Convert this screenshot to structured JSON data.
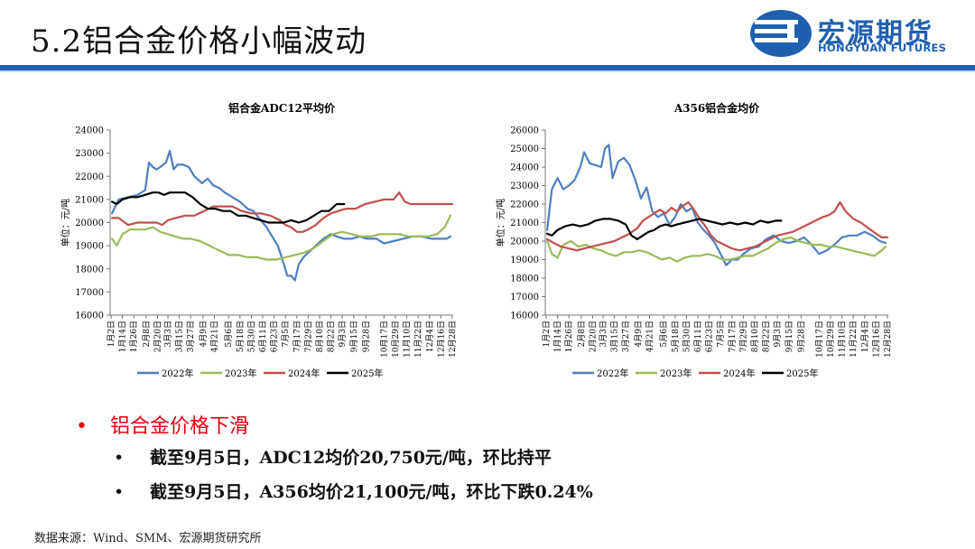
{
  "page": {
    "title": "5.2铝合金价格小幅波动",
    "logo_cn": "宏源期货",
    "logo_en": "HONGYUAN FUTURES",
    "source": "数据来源：Wind、SMM、宏源期货研究所"
  },
  "bullets": {
    "main": "铝合金价格下滑",
    "sub": [
      "截至9月5日，ADC12均价20,750元/吨，环比持平",
      "截至9月5日，A356均价21,100元/吨，环比下跌0.24%"
    ]
  },
  "colors": {
    "y2022": "#4f7fc0",
    "y2023": "#9bbb59",
    "y2024": "#c0504d",
    "y2025": "#000000",
    "brand": "#1f5fb0",
    "accent": "#e3000f"
  },
  "chart_data": [
    {
      "type": "line",
      "title": "铝合金ADC12平均价",
      "ylabel": "单位：元/吨",
      "ylim": [
        16000,
        24000
      ],
      "yticks": [
        16000,
        17000,
        18000,
        19000,
        20000,
        21000,
        22000,
        23000,
        24000
      ],
      "xlim": [
        1,
        363
      ],
      "xtick_labels": [
        "1月2日",
        "1月14日",
        "1月26日",
        "2月8日",
        "2月20日",
        "3月3日",
        "3月15日",
        "3月27日",
        "4月9日",
        "4月21日",
        "5月6日",
        "5月18日",
        "5月30日",
        "6月11日",
        "6月23日",
        "7月5日",
        "7月17日",
        "7月29日",
        "8月10日",
        "8月22日",
        "9月3日",
        "9月15日",
        "9月28日",
        "10月17日",
        "10月29日",
        "11月10日",
        "11月22日",
        "12月4日",
        "12月16日",
        "12月28日"
      ],
      "xtick_days": [
        2,
        14,
        26,
        39,
        51,
        62,
        74,
        86,
        99,
        111,
        126,
        138,
        150,
        162,
        174,
        186,
        198,
        210,
        222,
        234,
        246,
        258,
        271,
        290,
        302,
        314,
        326,
        338,
        350,
        362
      ],
      "legend": "bottom",
      "series": [
        {
          "name": "2022年",
          "key": "y2022",
          "x": [
            3,
            10,
            20,
            30,
            38,
            42,
            46,
            50,
            54,
            60,
            64,
            68,
            72,
            78,
            84,
            90,
            98,
            104,
            110,
            116,
            122,
            130,
            138,
            146,
            152,
            158,
            166,
            172,
            178,
            182,
            188,
            192,
            196,
            200,
            205,
            210,
            218,
            226,
            234,
            240,
            248,
            256,
            264,
            272,
            282,
            290,
            300,
            310,
            320,
            330,
            340,
            350,
            356,
            360
          ],
          "y": [
            20400,
            21000,
            21100,
            21200,
            21400,
            22600,
            22400,
            22300,
            22400,
            22600,
            23100,
            22300,
            22500,
            22500,
            22400,
            22000,
            21700,
            21900,
            21600,
            21500,
            21300,
            21100,
            20900,
            20600,
            20500,
            20200,
            19800,
            19400,
            19000,
            18500,
            17700,
            17700,
            17500,
            18200,
            18500,
            18700,
            19000,
            19300,
            19500,
            19400,
            19300,
            19300,
            19400,
            19300,
            19300,
            19100,
            19200,
            19300,
            19400,
            19400,
            19300,
            19300,
            19300,
            19400
          ]
        },
        {
          "name": "2023年",
          "key": "y2023",
          "x": [
            3,
            8,
            14,
            22,
            30,
            38,
            46,
            54,
            62,
            70,
            78,
            86,
            96,
            106,
            116,
            126,
            136,
            146,
            156,
            166,
            176,
            186,
            196,
            206,
            216,
            226,
            236,
            246,
            256,
            266,
            276,
            286,
            296,
            306,
            316,
            326,
            336,
            346,
            354,
            360
          ],
          "y": [
            19300,
            19000,
            19500,
            19700,
            19700,
            19700,
            19800,
            19600,
            19500,
            19400,
            19300,
            19300,
            19200,
            19000,
            18800,
            18600,
            18600,
            18500,
            18500,
            18400,
            18400,
            18500,
            18600,
            18700,
            18900,
            19200,
            19500,
            19600,
            19500,
            19400,
            19400,
            19500,
            19500,
            19500,
            19400,
            19400,
            19400,
            19500,
            19800,
            20300
          ]
        },
        {
          "name": "2024年",
          "key": "y2024",
          "x": [
            3,
            10,
            20,
            30,
            40,
            50,
            56,
            62,
            70,
            80,
            90,
            100,
            110,
            120,
            130,
            140,
            150,
            160,
            170,
            180,
            186,
            192,
            198,
            204,
            210,
            218,
            226,
            234,
            242,
            250,
            260,
            270,
            280,
            290,
            300,
            306,
            312,
            318,
            326,
            336,
            346,
            356,
            362
          ],
          "y": [
            20200,
            20200,
            19900,
            20000,
            20000,
            20000,
            19900,
            20100,
            20200,
            20300,
            20300,
            20500,
            20700,
            20700,
            20700,
            20500,
            20400,
            20400,
            20300,
            20100,
            19900,
            19800,
            19600,
            19600,
            19700,
            19900,
            20200,
            20400,
            20500,
            20600,
            20600,
            20800,
            20900,
            21000,
            21000,
            21300,
            20900,
            20800,
            20800,
            20800,
            20800,
            20800,
            20800
          ]
        },
        {
          "name": "2025年",
          "key": "y2025",
          "x": [
            3,
            8,
            14,
            22,
            30,
            38,
            46,
            52,
            58,
            64,
            72,
            80,
            88,
            96,
            104,
            112,
            120,
            128,
            136,
            144,
            152,
            160,
            168,
            176,
            184,
            192,
            200,
            208,
            216,
            224,
            232,
            240,
            248
          ],
          "y": [
            20900,
            20800,
            21000,
            21100,
            21100,
            21200,
            21300,
            21300,
            21200,
            21300,
            21300,
            21300,
            21100,
            20800,
            20600,
            20600,
            20500,
            20500,
            20300,
            20300,
            20200,
            20100,
            20000,
            20000,
            20000,
            20100,
            20000,
            20100,
            20300,
            20500,
            20500,
            20800,
            20800
          ]
        }
      ]
    },
    {
      "type": "line",
      "title": "A356铝合金均价",
      "ylabel": "单位：元/吨",
      "ylim": [
        16000,
        26000
      ],
      "yticks": [
        16000,
        17000,
        18000,
        19000,
        20000,
        21000,
        22000,
        23000,
        24000,
        25000,
        26000
      ],
      "xlim": [
        1,
        363
      ],
      "xtick_labels": [
        "1月2日",
        "1月14日",
        "1月26日",
        "2月8日",
        "2月20日",
        "3月3日",
        "3月15日",
        "3月27日",
        "4月9日",
        "4月21日",
        "5月6日",
        "5月18日",
        "5月30日",
        "6月11日",
        "6月23日",
        "7月5日",
        "7月17日",
        "7月29日",
        "8月10日",
        "8月22日",
        "9月3日",
        "9月15日",
        "9月28日",
        "10月17日",
        "10月29日",
        "11月10日",
        "11月22日",
        "12月4日",
        "12月16日",
        "12月28日"
      ],
      "xtick_days": [
        2,
        14,
        26,
        39,
        51,
        62,
        74,
        86,
        99,
        111,
        126,
        138,
        150,
        162,
        174,
        186,
        198,
        210,
        222,
        234,
        246,
        258,
        271,
        290,
        302,
        314,
        326,
        338,
        350,
        362
      ],
      "legend": "bottom",
      "series": [
        {
          "name": "2022年",
          "key": "y2022",
          "x": [
            3,
            8,
            14,
            20,
            26,
            32,
            38,
            42,
            48,
            54,
            60,
            64,
            68,
            72,
            78,
            84,
            90,
            96,
            102,
            108,
            114,
            120,
            126,
            132,
            138,
            144,
            150,
            156,
            162,
            168,
            174,
            180,
            186,
            192,
            198,
            204,
            210,
            218,
            226,
            234,
            242,
            250,
            258,
            266,
            274,
            282,
            290,
            298,
            306,
            314,
            322,
            330,
            338,
            346,
            354,
            360
          ],
          "y": [
            20600,
            22800,
            23400,
            22800,
            23000,
            23300,
            24000,
            24800,
            24200,
            24100,
            24000,
            25000,
            25200,
            23400,
            24300,
            24500,
            24100,
            23300,
            22300,
            22900,
            21600,
            21300,
            21500,
            20900,
            21300,
            22000,
            21600,
            21800,
            21000,
            20600,
            20300,
            19900,
            19300,
            18700,
            19000,
            19000,
            19300,
            19600,
            19700,
            20100,
            20300,
            20000,
            19900,
            20000,
            20200,
            19800,
            19300,
            19500,
            19800,
            20200,
            20300,
            20300,
            20500,
            20300,
            20000,
            19900
          ]
        },
        {
          "name": "2023年",
          "key": "y2023",
          "x": [
            3,
            8,
            14,
            20,
            28,
            36,
            44,
            52,
            60,
            68,
            76,
            84,
            92,
            100,
            108,
            116,
            124,
            132,
            140,
            148,
            156,
            164,
            172,
            180,
            188,
            196,
            204,
            212,
            220,
            228,
            236,
            244,
            252,
            260,
            268,
            276,
            284,
            292,
            300,
            308,
            316,
            324,
            332,
            340,
            348,
            356,
            360
          ],
          "y": [
            20000,
            19300,
            19100,
            19800,
            20000,
            19700,
            19800,
            19600,
            19500,
            19300,
            19200,
            19400,
            19400,
            19500,
            19400,
            19200,
            19000,
            19100,
            18900,
            19100,
            19200,
            19200,
            19300,
            19200,
            19000,
            19000,
            19100,
            19200,
            19200,
            19400,
            19600,
            19900,
            20100,
            20200,
            20000,
            19900,
            19800,
            19800,
            19700,
            19700,
            19600,
            19500,
            19400,
            19300,
            19200,
            19500,
            19700
          ]
        },
        {
          "name": "2024年",
          "key": "y2024",
          "x": [
            3,
            10,
            18,
            26,
            34,
            42,
            50,
            58,
            66,
            74,
            82,
            90,
            98,
            104,
            110,
            116,
            122,
            128,
            134,
            140,
            146,
            152,
            158,
            164,
            170,
            176,
            182,
            190,
            198,
            206,
            214,
            222,
            230,
            238,
            246,
            254,
            262,
            270,
            278,
            286,
            294,
            300,
            306,
            312,
            318,
            326,
            334,
            342,
            350,
            356,
            362
          ],
          "y": [
            20100,
            19900,
            19700,
            19600,
            19500,
            19600,
            19700,
            19800,
            19900,
            20000,
            20200,
            20400,
            20700,
            21100,
            21300,
            21500,
            21700,
            21500,
            21800,
            21600,
            21900,
            22100,
            21700,
            21200,
            20800,
            20300,
            20000,
            19800,
            19600,
            19500,
            19600,
            19700,
            19900,
            20100,
            20300,
            20400,
            20500,
            20700,
            20900,
            21100,
            21300,
            21400,
            21600,
            22100,
            21600,
            21200,
            21000,
            20700,
            20400,
            20200,
            20200
          ]
        },
        {
          "name": "2025年",
          "key": "y2025",
          "x": [
            3,
            8,
            14,
            22,
            30,
            38,
            46,
            54,
            62,
            70,
            78,
            86,
            92,
            98,
            104,
            110,
            116,
            122,
            128,
            134,
            140,
            148,
            156,
            164,
            172,
            180,
            188,
            196,
            204,
            212,
            220,
            228,
            236,
            244,
            250
          ],
          "y": [
            20400,
            20300,
            20600,
            20800,
            20900,
            20800,
            20900,
            21100,
            21200,
            21200,
            21100,
            20900,
            20300,
            20100,
            20300,
            20500,
            20600,
            20800,
            20900,
            20800,
            20900,
            21000,
            21100,
            21200,
            21100,
            21000,
            20900,
            21000,
            20900,
            21000,
            20900,
            21100,
            21000,
            21100,
            21100
          ]
        }
      ]
    }
  ]
}
